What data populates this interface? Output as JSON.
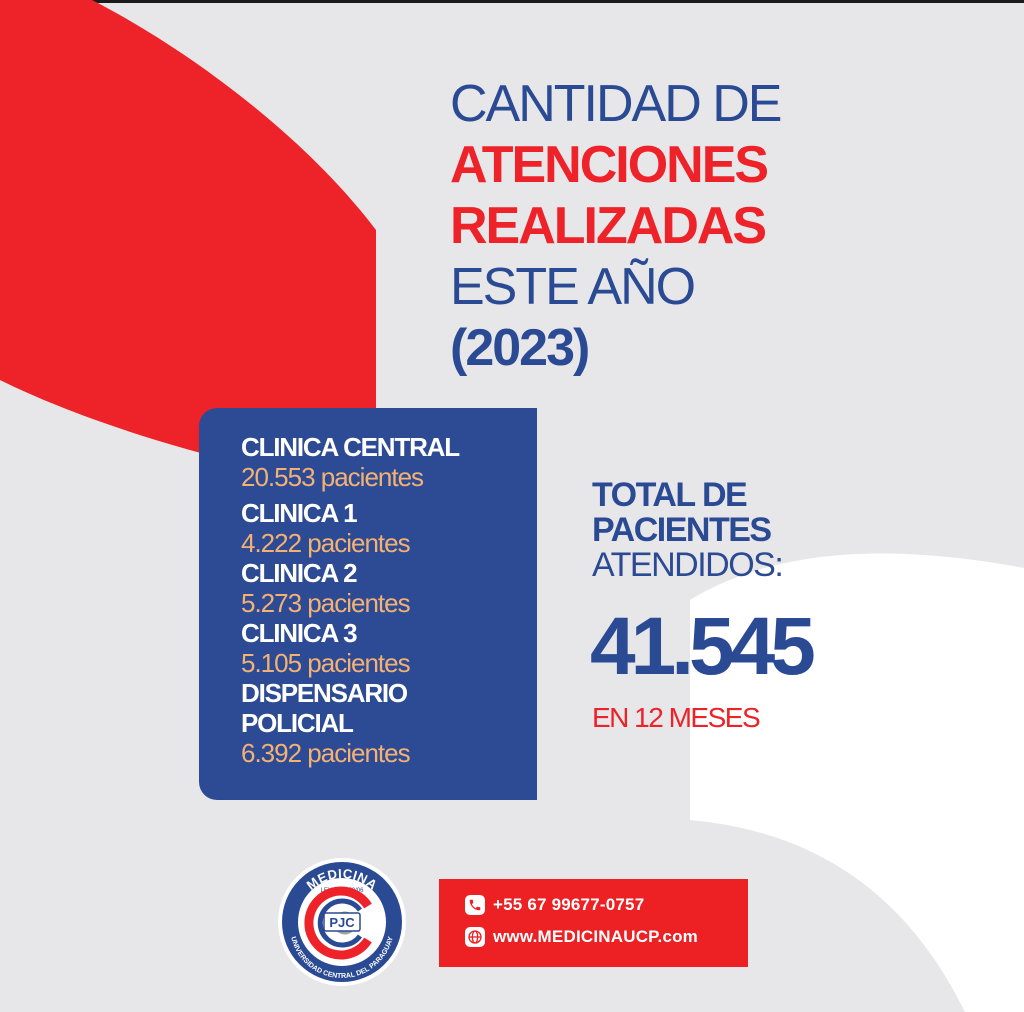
{
  "title": {
    "line1": "CANTIDAD DE",
    "line2": "ATENCIONES",
    "line3": "REALIZADAS",
    "line4": "ESTE AÑO",
    "line5": "(2023)"
  },
  "clinics": [
    {
      "name": "CLINICA CENTRAL",
      "count": "20.553 pacientes"
    },
    {
      "name": "CLINICA 1",
      "count": "4.222 pacientes"
    },
    {
      "name": "CLINICA 2",
      "count": "5.273 pacientes"
    },
    {
      "name": "CLINICA 3",
      "count": "5.105 pacientes"
    },
    {
      "name_line1": "DISPENSARIO",
      "name_line2": "POLICIAL",
      "count": "6.392 pacientes"
    }
  ],
  "total": {
    "line1": "TOTAL DE",
    "line2": "PACIENTES",
    "line3": "ATENDIDOS:",
    "number": "41.545",
    "period": "EN 12 MESES"
  },
  "logo": {
    "top_text": "MEDICINA",
    "law_text": "LEY N° 3153/06",
    "initials": "PJC",
    "ring_text": "UNIVERSIDAD CENTRAL DEL PARAGUAY"
  },
  "contact": {
    "phone": "+55 67 99677-0757",
    "website": "www.MEDICINAUCP.com",
    "phone_icon": "phone-icon",
    "web_icon": "globe-icon"
  },
  "colors": {
    "brand_blue": "#2b4a94",
    "brand_red": "#ee2229",
    "accent_orange": "#f3b173",
    "background": "#e7e7e9"
  }
}
